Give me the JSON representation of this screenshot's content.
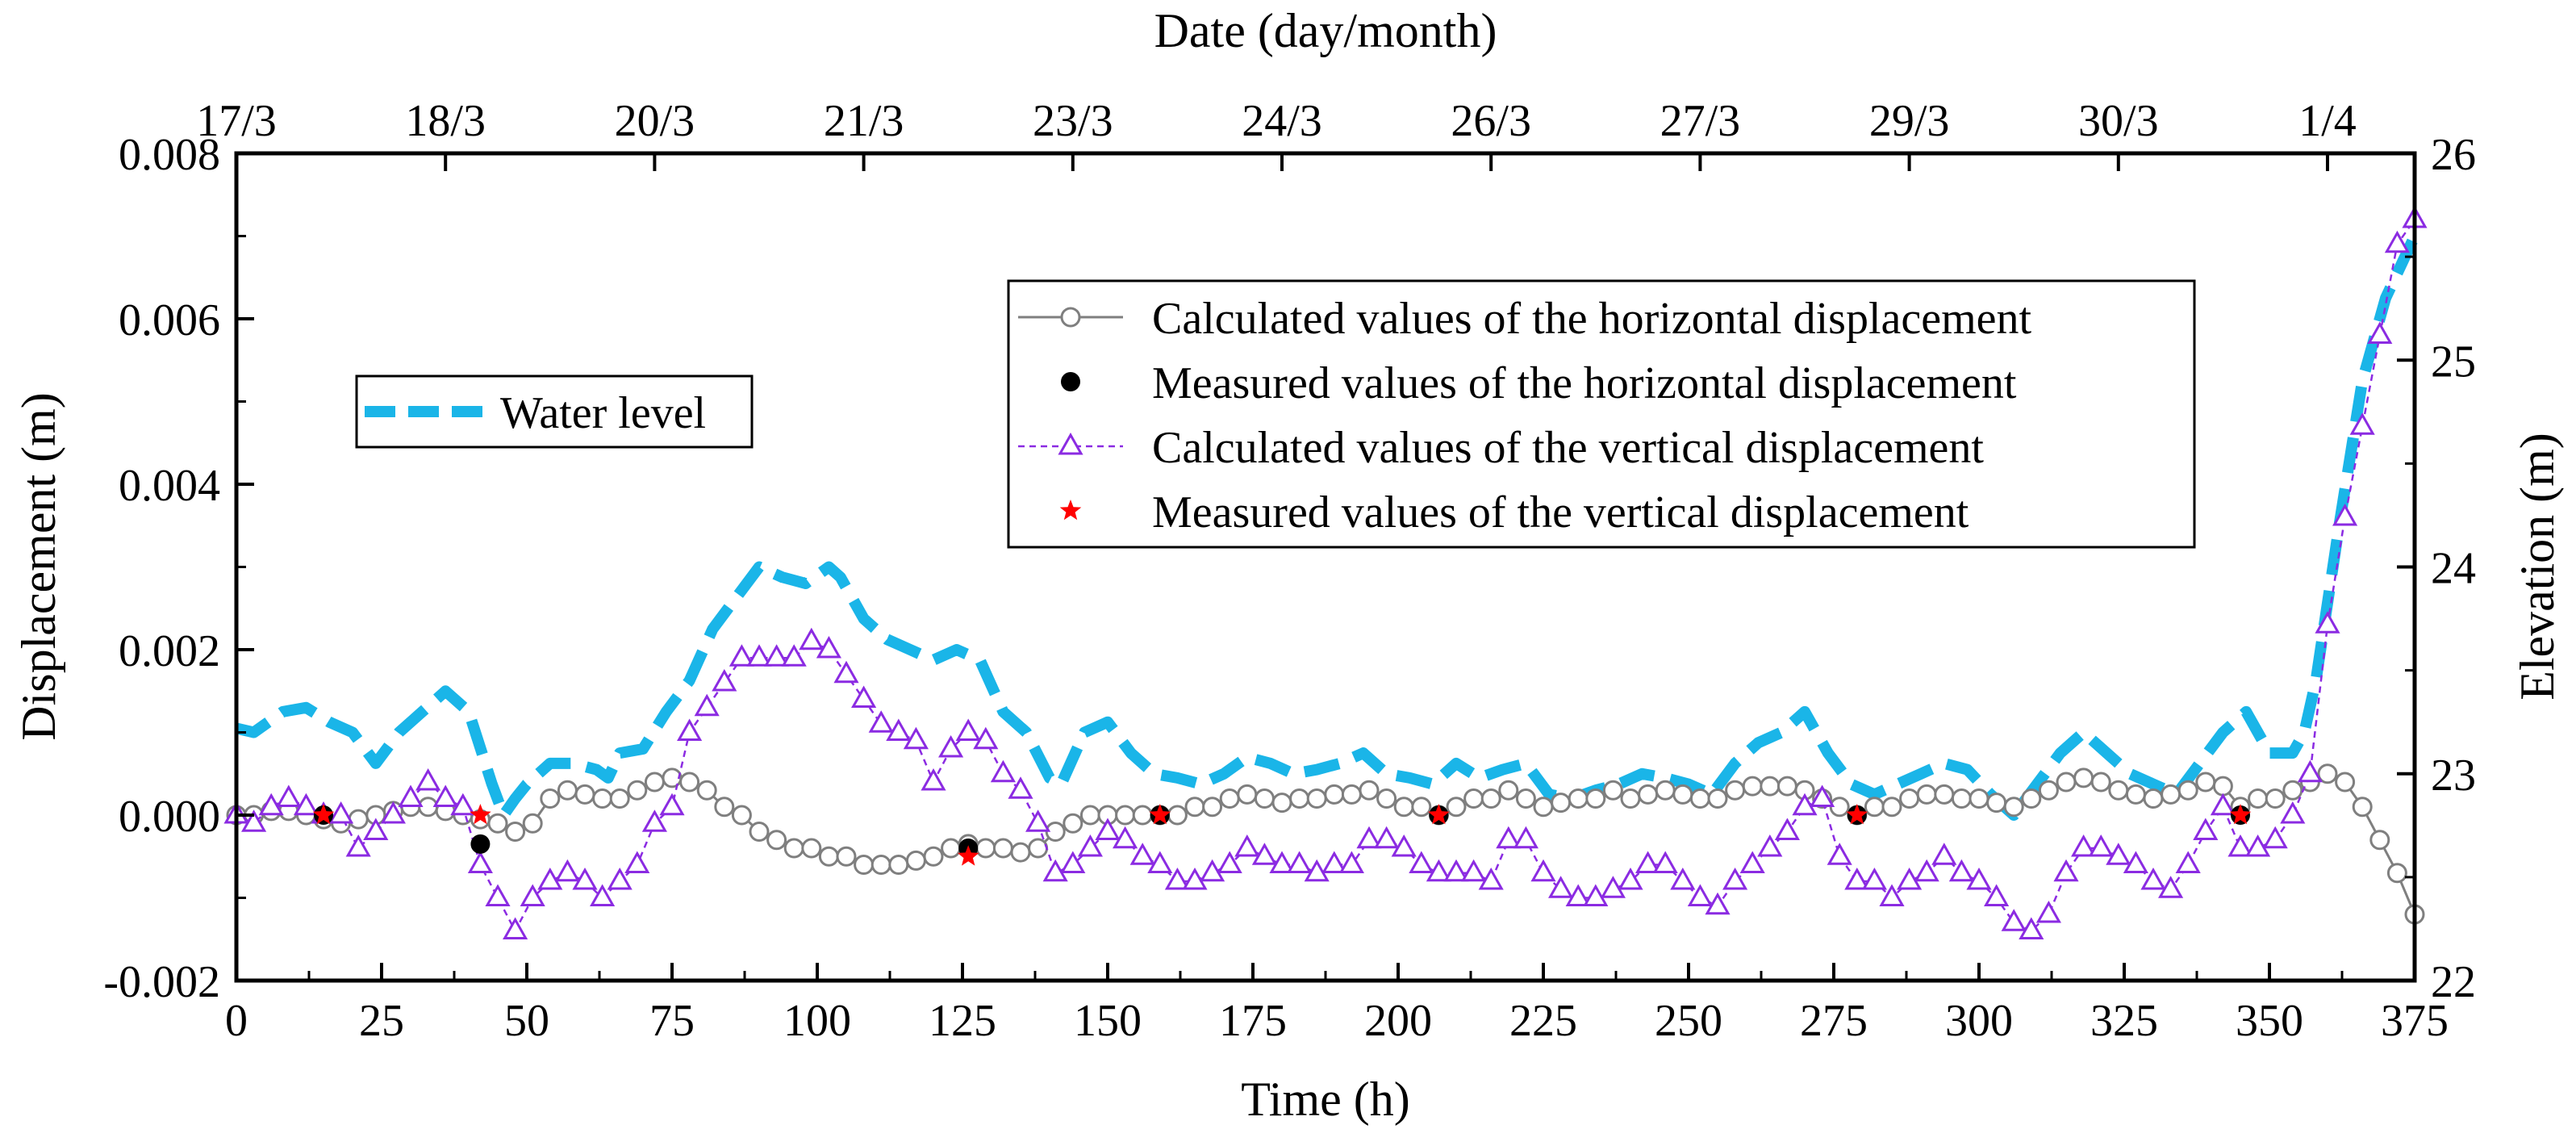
{
  "chart_data": {
    "type": "line",
    "xlabel": "Time (h)",
    "ylabel": "Displacement (m)",
    "y2label": "Elevation (m)",
    "top_axis_title": "Date (day/month)",
    "xlim": [
      0,
      375
    ],
    "ylim": [
      -0.002,
      0.008
    ],
    "y2lim": [
      22,
      26
    ],
    "x_ticks": [
      0,
      25,
      50,
      75,
      100,
      125,
      150,
      175,
      200,
      225,
      250,
      275,
      300,
      325,
      350,
      375
    ],
    "y_ticks": [
      -0.002,
      0,
      0.002,
      0.004,
      0.006,
      0.008
    ],
    "y_tick_labels": [
      "-0.002",
      "0.000",
      "0.002",
      "0.004",
      "0.006",
      "0.008"
    ],
    "y2_ticks": [
      22,
      23,
      24,
      25,
      26
    ],
    "top_ticks": [
      {
        "x": 0,
        "label": "17/3"
      },
      {
        "x": 36,
        "label": "18/3"
      },
      {
        "x": 72,
        "label": "20/3"
      },
      {
        "x": 108,
        "label": "21/3"
      },
      {
        "x": 144,
        "label": "23/3"
      },
      {
        "x": 180,
        "label": "24/3"
      },
      {
        "x": 216,
        "label": "26/3"
      },
      {
        "x": 252,
        "label": "27/3"
      },
      {
        "x": 288,
        "label": "29/3"
      },
      {
        "x": 324,
        "label": "30/3"
      },
      {
        "x": 360,
        "label": "1/4"
      }
    ],
    "grid": false,
    "series": [
      {
        "name": "Water level",
        "axis": "right",
        "style": "dashed",
        "color": "#1ab5e8",
        "x": [
          0,
          3,
          8,
          12,
          16,
          20,
          24,
          28,
          32,
          36,
          40,
          44,
          46,
          48,
          50,
          54,
          58,
          62,
          64,
          66,
          70,
          74,
          78,
          82,
          86,
          90,
          94,
          98,
          102,
          104,
          108,
          112,
          116,
          120,
          124,
          128,
          132,
          136,
          140,
          142,
          146,
          150,
          154,
          158,
          162,
          166,
          170,
          174,
          178,
          182,
          186,
          190,
          194,
          198,
          202,
          206,
          210,
          214,
          218,
          222,
          226,
          230,
          234,
          238,
          242,
          246,
          250,
          254,
          258,
          262,
          266,
          270,
          274,
          278,
          282,
          286,
          290,
          294,
          298,
          302,
          306,
          310,
          314,
          318,
          322,
          326,
          330,
          334,
          338,
          342,
          346,
          350,
          354,
          356,
          358,
          362,
          366,
          370,
          375
        ],
        "values": [
          23.22,
          23.2,
          23.3,
          23.32,
          23.25,
          23.2,
          23.05,
          23.2,
          23.3,
          23.4,
          23.3,
          22.95,
          22.8,
          22.88,
          22.95,
          23.05,
          23.05,
          23.02,
          22.98,
          23.1,
          23.12,
          23.3,
          23.45,
          23.7,
          23.85,
          24.0,
          23.95,
          23.92,
          24.0,
          23.95,
          23.75,
          23.65,
          23.6,
          23.55,
          23.6,
          23.55,
          23.3,
          23.2,
          22.98,
          22.95,
          23.2,
          23.25,
          23.1,
          23.0,
          22.98,
          22.95,
          23.0,
          23.08,
          23.05,
          23.0,
          23.02,
          23.05,
          23.1,
          23.0,
          22.98,
          22.95,
          23.05,
          22.98,
          23.02,
          23.05,
          22.9,
          22.88,
          22.92,
          22.95,
          23.0,
          22.98,
          22.95,
          22.9,
          23.05,
          23.15,
          23.2,
          23.3,
          23.1,
          22.95,
          22.9,
          22.95,
          23.0,
          23.05,
          23.02,
          22.9,
          22.8,
          22.95,
          23.1,
          23.2,
          23.1,
          23.0,
          22.95,
          22.9,
          23.05,
          23.2,
          23.3,
          23.1,
          23.1,
          23.2,
          23.45,
          24.2,
          24.9,
          25.3,
          25.6
        ]
      },
      {
        "name": "Calculated values of the horizontal displacement",
        "axis": "left",
        "style": "solid-circle",
        "color": "#7f7f7f",
        "x": [
          0,
          3,
          6,
          9,
          12,
          15,
          18,
          21,
          24,
          27,
          30,
          33,
          36,
          39,
          42,
          45,
          48,
          51,
          54,
          57,
          60,
          63,
          66,
          69,
          72,
          75,
          78,
          81,
          84,
          87,
          90,
          93,
          96,
          99,
          102,
          105,
          108,
          111,
          114,
          117,
          120,
          123,
          126,
          129,
          132,
          135,
          138,
          141,
          144,
          147,
          150,
          153,
          156,
          159,
          162,
          165,
          168,
          171,
          174,
          177,
          180,
          183,
          186,
          189,
          192,
          195,
          198,
          201,
          204,
          207,
          210,
          213,
          216,
          219,
          222,
          225,
          228,
          231,
          234,
          237,
          240,
          243,
          246,
          249,
          252,
          255,
          258,
          261,
          264,
          267,
          270,
          273,
          276,
          279,
          282,
          285,
          288,
          291,
          294,
          297,
          300,
          303,
          306,
          309,
          312,
          315,
          318,
          321,
          324,
          327,
          330,
          333,
          336,
          339,
          342,
          345,
          348,
          351,
          354,
          357,
          360,
          363,
          366,
          369,
          372,
          375
        ],
        "values": [
          0.0,
          0.0,
          5e-05,
          5e-05,
          0.0,
          -5e-05,
          -0.0001,
          -5e-05,
          0.0,
          5e-05,
          0.0001,
          0.0001,
          5e-05,
          0.0,
          -5e-05,
          -0.0001,
          -0.0002,
          -0.0001,
          0.0002,
          0.0003,
          0.00025,
          0.0002,
          0.0002,
          0.0003,
          0.0004,
          0.00045,
          0.0004,
          0.0003,
          0.0001,
          0.0,
          -0.0002,
          -0.0003,
          -0.0004,
          -0.0004,
          -0.0005,
          -0.0005,
          -0.0006,
          -0.0006,
          -0.0006,
          -0.00055,
          -0.0005,
          -0.0004,
          -0.00035,
          -0.0004,
          -0.0004,
          -0.00045,
          -0.0004,
          -0.0002,
          -0.0001,
          0.0,
          0.0,
          0.0,
          0.0,
          0.0,
          0.0,
          0.0001,
          0.0001,
          0.0002,
          0.00025,
          0.0002,
          0.00015,
          0.0002,
          0.0002,
          0.00025,
          0.00025,
          0.0003,
          0.0002,
          0.0001,
          0.0001,
          0.0,
          0.0001,
          0.0002,
          0.0002,
          0.0003,
          0.0002,
          0.0001,
          0.00015,
          0.0002,
          0.0002,
          0.0003,
          0.0002,
          0.00025,
          0.0003,
          0.00025,
          0.0002,
          0.0002,
          0.0003,
          0.00035,
          0.00035,
          0.00035,
          0.0003,
          0.0002,
          0.0001,
          0.0,
          0.0001,
          0.0001,
          0.0002,
          0.00025,
          0.00025,
          0.0002,
          0.0002,
          0.00015,
          0.0001,
          0.0002,
          0.0003,
          0.0004,
          0.00045,
          0.0004,
          0.0003,
          0.00025,
          0.0002,
          0.00025,
          0.0003,
          0.0004,
          0.00035,
          0.0001,
          0.0002,
          0.0002,
          0.0003,
          0.0004,
          0.0005,
          0.0004,
          0.0001,
          -0.0003,
          -0.0007,
          -0.0012
        ]
      },
      {
        "name": "Measured values of the horizontal displacement",
        "axis": "left",
        "style": "filled-circle",
        "color": "#000000",
        "x": [
          15,
          42,
          126,
          159,
          207,
          279,
          345
        ],
        "values": [
          0.0,
          -0.00035,
          -0.0004,
          0.0,
          0.0,
          0.0,
          0.0
        ]
      },
      {
        "name": "Calculated values of the vertical displacement",
        "axis": "left",
        "style": "dashed-triangle",
        "color": "#8b2be2",
        "x": [
          0,
          3,
          6,
          9,
          12,
          15,
          18,
          21,
          24,
          27,
          30,
          33,
          36,
          39,
          42,
          45,
          48,
          51,
          54,
          57,
          60,
          63,
          66,
          69,
          72,
          75,
          78,
          81,
          84,
          87,
          90,
          93,
          96,
          99,
          102,
          105,
          108,
          111,
          114,
          117,
          120,
          123,
          126,
          129,
          132,
          135,
          138,
          141,
          144,
          147,
          150,
          153,
          156,
          159,
          162,
          165,
          168,
          171,
          174,
          177,
          180,
          183,
          186,
          189,
          192,
          195,
          198,
          201,
          204,
          207,
          210,
          213,
          216,
          219,
          222,
          225,
          228,
          231,
          234,
          237,
          240,
          243,
          246,
          249,
          252,
          255,
          258,
          261,
          264,
          267,
          270,
          273,
          276,
          279,
          282,
          285,
          288,
          291,
          294,
          297,
          300,
          303,
          306,
          309,
          312,
          315,
          318,
          321,
          324,
          327,
          330,
          333,
          336,
          339,
          342,
          345,
          348,
          351,
          354,
          357,
          360,
          363,
          366,
          369,
          372,
          375
        ],
        "values": [
          0.0,
          -0.0001,
          0.0001,
          0.0002,
          0.0001,
          0.0,
          0.0,
          -0.0004,
          -0.0002,
          0.0,
          0.0002,
          0.0004,
          0.0002,
          0.0001,
          -0.0006,
          -0.001,
          -0.0014,
          -0.001,
          -0.0008,
          -0.0007,
          -0.0008,
          -0.001,
          -0.0008,
          -0.0006,
          -0.0001,
          0.0001,
          0.001,
          0.0013,
          0.0016,
          0.0019,
          0.0019,
          0.0019,
          0.0019,
          0.0021,
          0.002,
          0.0017,
          0.0014,
          0.0011,
          0.001,
          0.0009,
          0.0004,
          0.0008,
          0.001,
          0.0009,
          0.0005,
          0.0003,
          -0.0001,
          -0.0007,
          -0.0006,
          -0.0004,
          -0.0002,
          -0.0003,
          -0.0005,
          -0.0006,
          -0.0008,
          -0.0008,
          -0.0007,
          -0.0006,
          -0.0004,
          -0.0005,
          -0.0006,
          -0.0006,
          -0.0007,
          -0.0006,
          -0.0006,
          -0.0003,
          -0.0003,
          -0.0004,
          -0.0006,
          -0.0007,
          -0.0007,
          -0.0007,
          -0.0008,
          -0.0003,
          -0.0003,
          -0.0007,
          -0.0009,
          -0.001,
          -0.001,
          -0.0009,
          -0.0008,
          -0.0006,
          -0.0006,
          -0.0008,
          -0.001,
          -0.0011,
          -0.0008,
          -0.0006,
          -0.0004,
          -0.0002,
          0.0001,
          0.0002,
          -0.0005,
          -0.0008,
          -0.0008,
          -0.001,
          -0.0008,
          -0.0007,
          -0.0005,
          -0.0007,
          -0.0008,
          -0.001,
          -0.0013,
          -0.0014,
          -0.0012,
          -0.0007,
          -0.0004,
          -0.0004,
          -0.0005,
          -0.0006,
          -0.0008,
          -0.0009,
          -0.0006,
          -0.0002,
          0.0001,
          -0.0004,
          -0.0004,
          -0.0003,
          0.0,
          0.0005,
          0.0023,
          0.0036,
          0.0047,
          0.0058,
          0.0069,
          0.0072
        ]
      },
      {
        "name": "Measured values of the vertical displacement",
        "axis": "left",
        "style": "red-star",
        "color": "#ff0000",
        "x": [
          15,
          42,
          126,
          159,
          207,
          279,
          345
        ],
        "values": [
          0.0,
          0.0,
          -0.0005,
          0.0,
          0.0,
          0.0,
          0.0
        ]
      }
    ]
  }
}
